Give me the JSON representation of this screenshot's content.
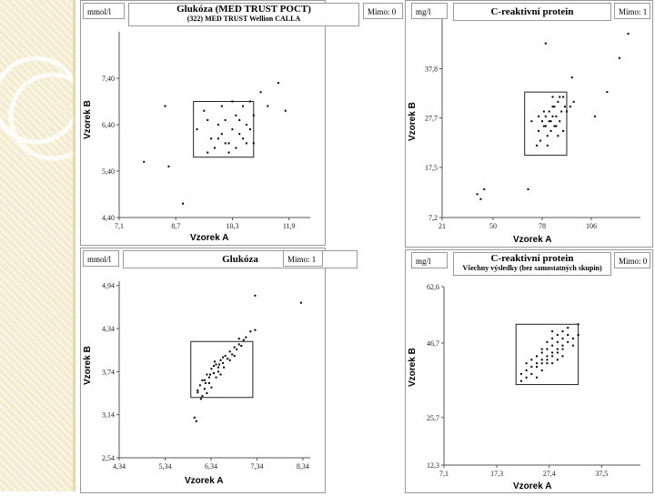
{
  "charts": [
    {
      "unit": "mmol/l",
      "mimo": "Mimo: 0",
      "title": "Glukóza (MED TRUST POCT)",
      "subtitle": "(322) MED TRUST Wellion CALLA",
      "xlabel": "Vzorek A",
      "ylabel": "Vzorek B"
    },
    {
      "unit": "mg/l",
      "mimo": "Mimo: 1",
      "title": "C-reaktivní protein",
      "subtitle": "",
      "xlabel": "Vzorek A",
      "ylabel": "Vzorek B"
    },
    {
      "unit": "mmol/l",
      "mimo": "Mimo: 1",
      "title": "Glukóza",
      "subtitle": "",
      "xlabel": "Vzorek A",
      "ylabel": "Vzorek B"
    },
    {
      "unit": "mg/l",
      "mimo": "Mimo: 0",
      "title": "C-reaktivní protein",
      "subtitle": "Všechny výsledky (bez samostatných skupin)",
      "xlabel": "Vzorek A",
      "ylabel": "Vzorek B"
    }
  ],
  "chart_data": [
    {
      "type": "scatter",
      "title": "Glukóza (MED TRUST POCT)",
      "subtitle": "(322) MED TRUST Wellion CALLA",
      "xlabel": "Vzorek A",
      "ylabel": "Vzorek B",
      "xlim": [
        7.1,
        12.5
      ],
      "ylim": [
        4.4,
        8.4
      ],
      "xticks": [
        "7,1",
        "8,7",
        "10,3",
        "11,9"
      ],
      "xtick_values": [
        7.1,
        8.7,
        10.3,
        11.9
      ],
      "yticks": [
        "7,40",
        "6,40",
        "5,40",
        "4,40"
      ],
      "ytick_values": [
        7.4,
        6.4,
        5.4,
        4.4
      ],
      "box": {
        "x": [
          9.2,
          10.9
        ],
        "y": [
          5.7,
          6.9
        ]
      },
      "points": [
        [
          7.8,
          5.6
        ],
        [
          8.5,
          5.5
        ],
        [
          8.4,
          6.8
        ],
        [
          8.9,
          4.7
        ],
        [
          9.3,
          6.3
        ],
        [
          9.6,
          6.5
        ],
        [
          9.7,
          6.1
        ],
        [
          9.8,
          5.9
        ],
        [
          9.9,
          6.4
        ],
        [
          10.0,
          6.2
        ],
        [
          10.1,
          6.5
        ],
        [
          10.2,
          6.0
        ],
        [
          10.3,
          6.3
        ],
        [
          10.4,
          6.6
        ],
        [
          10.5,
          6.2
        ],
        [
          10.6,
          6.8
        ],
        [
          10.7,
          6.4
        ],
        [
          10.8,
          6.9
        ],
        [
          10.9,
          6.6
        ],
        [
          10.4,
          5.9
        ],
        [
          10.2,
          5.8
        ],
        [
          9.5,
          6.7
        ],
        [
          10.0,
          6.8
        ],
        [
          10.6,
          6.1
        ],
        [
          10.8,
          6.3
        ],
        [
          11.1,
          7.1
        ],
        [
          11.3,
          6.8
        ],
        [
          11.6,
          7.3
        ],
        [
          11.8,
          6.7
        ],
        [
          10.1,
          6.0
        ],
        [
          9.9,
          6.1
        ],
        [
          10.5,
          6.5
        ],
        [
          10.3,
          6.9
        ],
        [
          10.7,
          6.0
        ],
        [
          9.6,
          5.8
        ],
        [
          10.9,
          6.0
        ]
      ]
    },
    {
      "type": "scatter",
      "title": "C-reaktivní protein",
      "xlabel": "Vzorek A",
      "ylabel": "Vzorek B",
      "xlim": [
        21,
        134
      ],
      "ylim": [
        7.2,
        48
      ],
      "xticks": [
        "21",
        "50",
        "78",
        "106"
      ],
      "xtick_values": [
        21,
        50,
        78,
        106
      ],
      "yticks": [
        "37,8",
        "27,7",
        "17,5",
        "7,2"
      ],
      "ytick_values": [
        37.8,
        27.7,
        17.5,
        7.2
      ],
      "box": {
        "x": [
          68,
          92
        ],
        "y": [
          20,
          33
        ]
      },
      "points": [
        [
          41,
          12
        ],
        [
          43,
          11
        ],
        [
          45,
          13
        ],
        [
          70,
          13
        ],
        [
          75,
          22
        ],
        [
          76,
          25
        ],
        [
          78,
          27
        ],
        [
          79,
          26
        ],
        [
          80,
          28
        ],
        [
          81,
          24
        ],
        [
          82,
          29
        ],
        [
          83,
          27
        ],
        [
          84,
          30
        ],
        [
          85,
          26
        ],
        [
          86,
          28
        ],
        [
          87,
          31
        ],
        [
          88,
          27
        ],
        [
          89,
          29
        ],
        [
          90,
          25
        ],
        [
          91,
          30
        ],
        [
          77,
          23
        ],
        [
          80,
          26
        ],
        [
          82,
          27
        ],
        [
          84,
          28
        ],
        [
          86,
          26
        ],
        [
          79,
          29
        ],
        [
          83,
          25
        ],
        [
          85,
          30
        ],
        [
          88,
          32
        ],
        [
          81,
          22
        ],
        [
          76,
          28
        ],
        [
          87,
          24
        ],
        [
          90,
          32
        ],
        [
          92,
          29
        ],
        [
          94,
          30
        ],
        [
          96,
          31
        ],
        [
          80,
          43
        ],
        [
          95,
          36
        ],
        [
          108,
          28
        ],
        [
          115,
          33
        ],
        [
          122,
          40
        ],
        [
          127,
          45
        ],
        [
          84,
          32
        ],
        [
          72,
          27
        ]
      ]
    },
    {
      "type": "scatter",
      "title": "Glukóza",
      "xlabel": "Vzorek A",
      "ylabel": "Vzorek B",
      "xlim": [
        4.34,
        8.5
      ],
      "ylim": [
        2.54,
        5.0
      ],
      "xticks": [
        "4,34",
        "5,34",
        "6,34",
        "7,34",
        "8,34"
      ],
      "xtick_values": [
        4.34,
        5.34,
        6.34,
        7.34,
        8.34
      ],
      "yticks": [
        "4,94",
        "4,34",
        "3,74",
        "3,14",
        "2,54"
      ],
      "ytick_values": [
        4.94,
        4.34,
        3.74,
        3.14,
        2.54
      ],
      "box": {
        "x": [
          5.9,
          7.25
        ],
        "y": [
          3.38,
          4.16
        ]
      },
      "points": [
        [
          5.98,
          3.1
        ],
        [
          6.02,
          3.05
        ],
        [
          6.05,
          3.45
        ],
        [
          6.1,
          3.55
        ],
        [
          6.15,
          3.62
        ],
        [
          6.2,
          3.5
        ],
        [
          6.25,
          3.7
        ],
        [
          6.3,
          3.66
        ],
        [
          6.35,
          3.78
        ],
        [
          6.4,
          3.72
        ],
        [
          6.45,
          3.84
        ],
        [
          6.5,
          3.8
        ],
        [
          6.55,
          3.9
        ],
        [
          6.6,
          3.86
        ],
        [
          6.65,
          3.96
        ],
        [
          6.7,
          3.92
        ],
        [
          6.75,
          4.02
        ],
        [
          6.8,
          3.98
        ],
        [
          6.85,
          4.08
        ],
        [
          6.9,
          4.05
        ],
        [
          6.95,
          4.12
        ],
        [
          7.0,
          4.1
        ],
        [
          7.05,
          4.18
        ],
        [
          7.1,
          4.22
        ],
        [
          6.2,
          3.62
        ],
        [
          6.3,
          3.58
        ],
        [
          6.4,
          3.82
        ],
        [
          6.5,
          3.74
        ],
        [
          6.6,
          3.94
        ],
        [
          6.25,
          3.44
        ],
        [
          6.35,
          3.52
        ],
        [
          6.45,
          3.66
        ],
        [
          6.15,
          3.4
        ],
        [
          6.55,
          3.7
        ],
        [
          6.75,
          3.9
        ],
        [
          6.85,
          3.96
        ],
        [
          6.05,
          3.48
        ],
        [
          6.12,
          3.36
        ],
        [
          6.22,
          3.58
        ],
        [
          6.42,
          3.88
        ],
        [
          6.62,
          3.8
        ],
        [
          7.2,
          4.3
        ],
        [
          7.3,
          4.32
        ],
        [
          7.3,
          4.8
        ],
        [
          8.3,
          4.7
        ],
        [
          6.95,
          4.2
        ],
        [
          6.32,
          3.7
        ],
        [
          6.52,
          3.84
        ]
      ]
    },
    {
      "type": "scatter",
      "title": "C-reaktivní protein",
      "subtitle": "Všechny výsledky (bez samostatných skupin)",
      "xlabel": "Vzorek A",
      "ylabel": "Vzorek B",
      "xlim": [
        7.1,
        45
      ],
      "ylim": [
        12.3,
        62.6
      ],
      "xticks": [
        "7,1",
        "17,3",
        "27,4",
        "37,5"
      ],
      "xtick_values": [
        7.1,
        17.3,
        27.4,
        37.5
      ],
      "yticks": [
        "62,6",
        "46,7",
        "25,7",
        "12,3"
      ],
      "ytick_values": [
        62.6,
        46.7,
        25.7,
        12.3
      ],
      "box": {
        "x": [
          21,
          33
        ],
        "y": [
          35,
          52
        ]
      },
      "points": [
        [
          22,
          38
        ],
        [
          23,
          39
        ],
        [
          24,
          40
        ],
        [
          25,
          41
        ],
        [
          26,
          42
        ],
        [
          27,
          43
        ],
        [
          28,
          44
        ],
        [
          29,
          45
        ],
        [
          30,
          46
        ],
        [
          31,
          47
        ],
        [
          32,
          48
        ],
        [
          33,
          49
        ],
        [
          23,
          41
        ],
        [
          24,
          42
        ],
        [
          25,
          43
        ],
        [
          26,
          44
        ],
        [
          27,
          45
        ],
        [
          28,
          46
        ],
        [
          29,
          47
        ],
        [
          30,
          48
        ],
        [
          31,
          49
        ],
        [
          25,
          40
        ],
        [
          26,
          41
        ],
        [
          27,
          42
        ],
        [
          28,
          43
        ],
        [
          29,
          44
        ],
        [
          30,
          45
        ],
        [
          24,
          38
        ],
        [
          26,
          39
        ],
        [
          28,
          41
        ],
        [
          30,
          43
        ],
        [
          27,
          47
        ],
        [
          29,
          49
        ],
        [
          31,
          51
        ],
        [
          28,
          50
        ],
        [
          32,
          46
        ],
        [
          26,
          45
        ],
        [
          25,
          37
        ],
        [
          23,
          37
        ],
        [
          22,
          36
        ],
        [
          33,
          52
        ],
        [
          30,
          50
        ],
        [
          28,
          48
        ],
        [
          27,
          41
        ],
        [
          29,
          42
        ]
      ]
    }
  ]
}
